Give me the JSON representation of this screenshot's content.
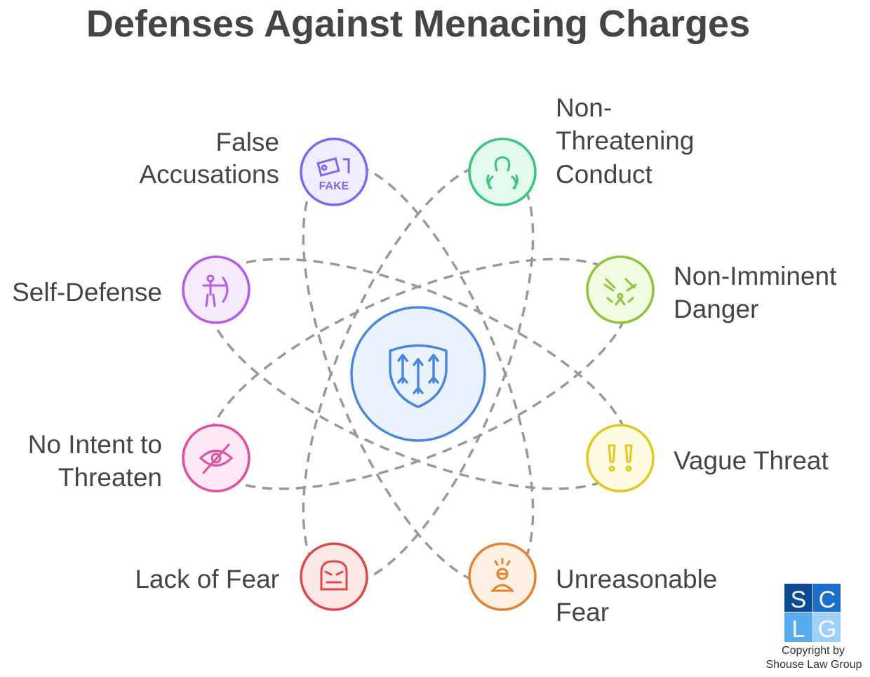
{
  "title": "Defenses Against Menacing Charges",
  "center": {
    "icon": "shield-arrows-icon",
    "color": "#4a86e0",
    "fill": "#eaf2fd"
  },
  "nodes": [
    {
      "id": "false-accusations",
      "lines": [
        "False",
        "Accusations"
      ],
      "icon": "fake-image-icon",
      "color": "#7b68ee",
      "fill": "#f0eefe"
    },
    {
      "id": "non-threatening-conduct",
      "lines": [
        "Non-",
        "Threatening",
        "Conduct"
      ],
      "icon": "protected-person-icon",
      "color": "#3cc47c",
      "fill": "#e2fbee"
    },
    {
      "id": "self-defense",
      "lines": [
        "Self-Defense"
      ],
      "icon": "archer-icon",
      "color": "#b45be8",
      "fill": "#f6eafd"
    },
    {
      "id": "non-imminent-danger",
      "lines": [
        "Non-Imminent",
        "Danger"
      ],
      "icon": "distant-threat-icon",
      "color": "#8cc43c",
      "fill": "#f1fbe2"
    },
    {
      "id": "no-intent-to-threaten",
      "lines": [
        "No Intent to",
        "Threaten"
      ],
      "icon": "eye-off-icon",
      "color": "#e04ea0",
      "fill": "#fde8f3"
    },
    {
      "id": "vague-threat",
      "lines": [
        "Vague Threat"
      ],
      "icon": "double-exclamation-icon",
      "color": "#e0c81c",
      "fill": "#fefbe0"
    },
    {
      "id": "lack-of-fear",
      "lines": [
        "Lack of Fear"
      ],
      "icon": "angry-face-icon",
      "color": "#e04848",
      "fill": "#fde8e8"
    },
    {
      "id": "unreasonable-fear",
      "lines": [
        "Unreasonable",
        "Fear"
      ],
      "icon": "stressed-person-icon",
      "color": "#e08430",
      "fill": "#fdf0e2"
    }
  ],
  "logo": {
    "letters": [
      "S",
      "C",
      "L",
      "G"
    ],
    "copyright_lines": [
      "Copyright by",
      "Shouse Law Group"
    ]
  }
}
